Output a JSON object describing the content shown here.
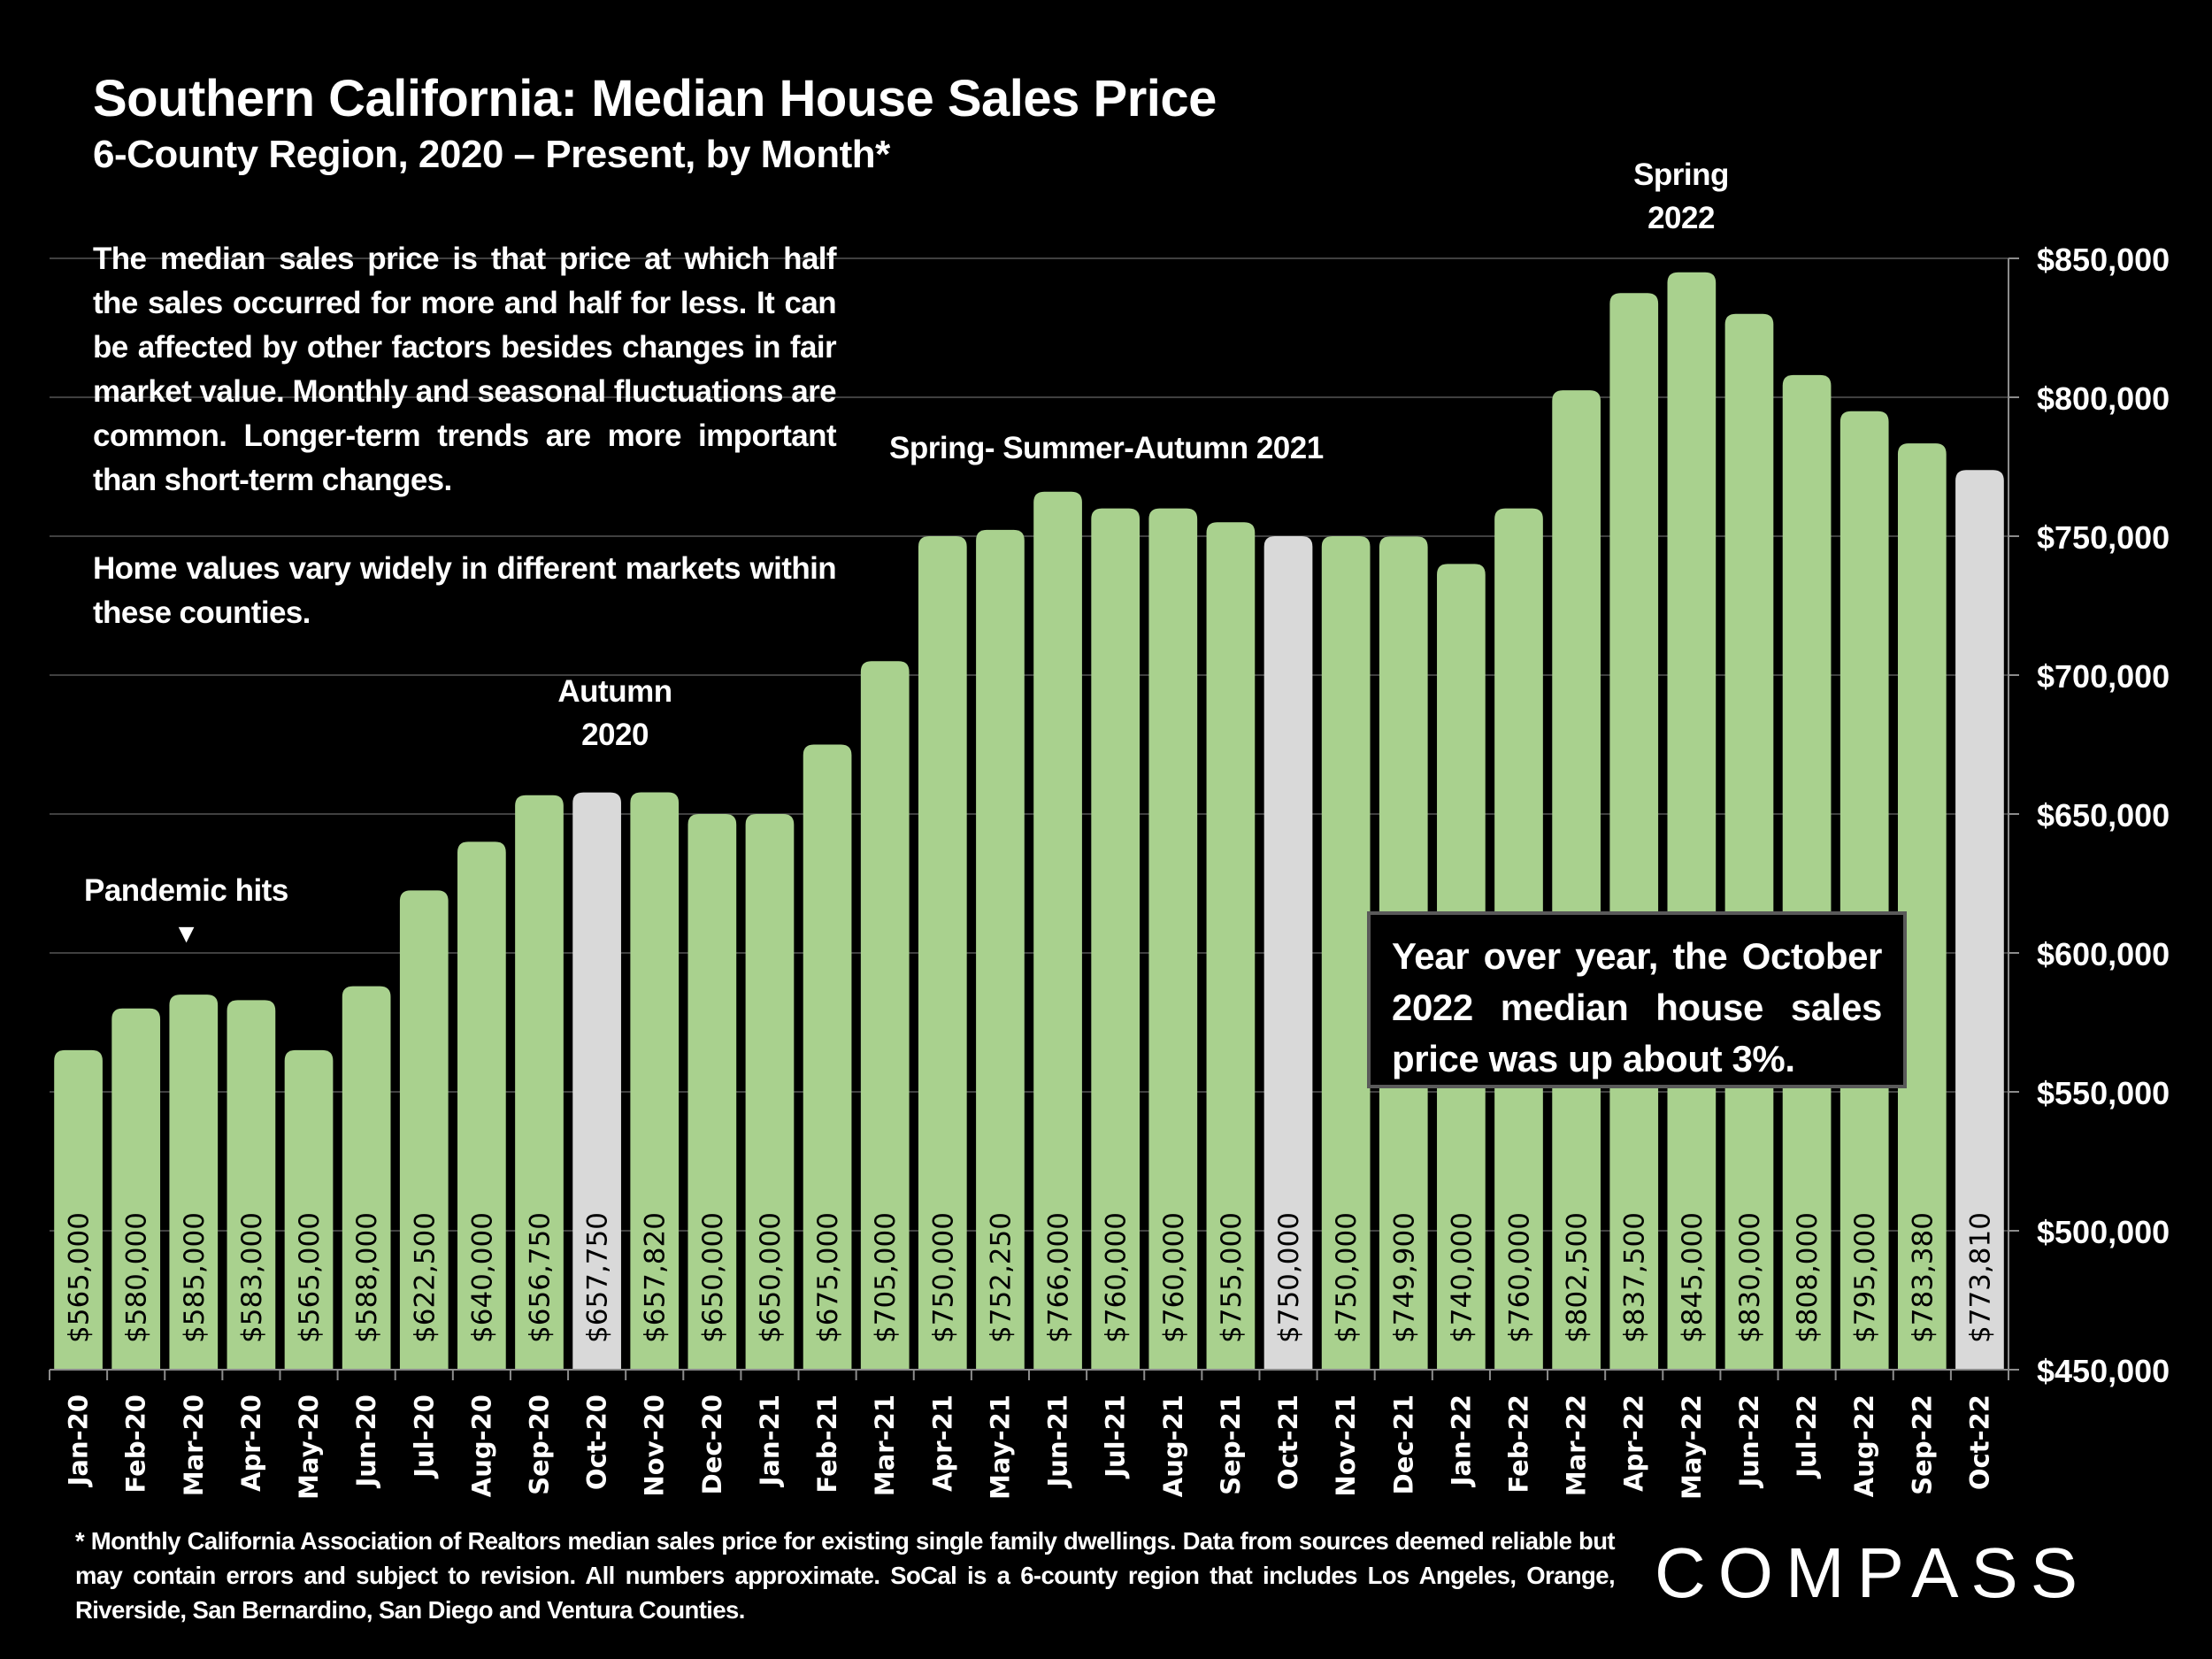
{
  "header": {
    "title": "Southern California: Median House Sales Price",
    "subtitle": "6-County Region, 2020 – Present, by Month*"
  },
  "description": {
    "paragraph1": "The median sales price is that price at which half the sales occurred for more and half for less. It can be affected by other factors besides changes in fair market value. Monthly and seasonal fluctuations are common. Longer-term trends are more important than short-term changes.",
    "paragraph2": "Home values vary widely in different markets within these counties."
  },
  "annotations": {
    "pandemic": "Pandemic hits",
    "pandemic_marker": "▼",
    "autumn_2020_line1": "Autumn",
    "autumn_2020_line2": "2020",
    "ssa_2021": "Spring- Summer-Autumn 2021",
    "spring_2022_line1": "Spring",
    "spring_2022_line2": "2022"
  },
  "callout": {
    "text": "Year over year, the October 2022 median house sales price was up about 3%."
  },
  "footnote": "* Monthly California Association of Realtors median sales price for existing single family dwellings. Data from sources deemed reliable but may contain errors and subject to revision. All numbers approximate. SoCal is a 6-county region that includes Los Angeles, Orange, Riverside, San Bernardino, San Diego and Ventura Counties.",
  "brand": {
    "logo_text": "COMPASS"
  },
  "colors": {
    "background": "#000000",
    "bar_default": "#a9d18e",
    "bar_highlight": "#d9d9d9",
    "gridline": "#404040",
    "axis": "#8c8c8c",
    "text": "#ffffff"
  },
  "chart_data": {
    "type": "bar",
    "title": "Southern California: Median House Sales Price",
    "subtitle": "6-County Region, 2020 – Present, by Month*",
    "xlabel": "",
    "ylabel": "",
    "ylim": [
      450000,
      850000
    ],
    "y_axis_position": "right",
    "grid": true,
    "legend": "none",
    "yticks": [
      450000,
      500000,
      550000,
      600000,
      650000,
      700000,
      750000,
      800000,
      850000
    ],
    "ytick_labels": [
      "$450,000",
      "$500,000",
      "$550,000",
      "$600,000",
      "$650,000",
      "$700,000",
      "$750,000",
      "$800,000",
      "$850,000"
    ],
    "categories": [
      "Jan-20",
      "Feb-20",
      "Mar-20",
      "Apr-20",
      "May-20",
      "Jun-20",
      "Jul-20",
      "Aug-20",
      "Sep-20",
      "Oct-20",
      "Nov-20",
      "Dec-20",
      "Jan-21",
      "Feb-21",
      "Mar-21",
      "Apr-21",
      "May-21",
      "Jun-21",
      "Jul-21",
      "Aug-21",
      "Sep-21",
      "Oct-21",
      "Nov-21",
      "Dec-21",
      "Jan-22",
      "Feb-22",
      "Mar-22",
      "Apr-22",
      "May-22",
      "Jun-22",
      "Jul-22",
      "Aug-22",
      "Sep-22",
      "Oct-22"
    ],
    "values": [
      565000,
      580000,
      585000,
      583000,
      565000,
      588000,
      622500,
      640000,
      656750,
      657750,
      657820,
      650000,
      650000,
      675000,
      705000,
      750000,
      752250,
      766000,
      760000,
      760000,
      755000,
      750000,
      750000,
      749900,
      740000,
      760000,
      802500,
      837500,
      845000,
      830000,
      808000,
      795000,
      783380,
      773810
    ],
    "data_labels": [
      "$565,000",
      "$580,000",
      "$585,000",
      "$583,000",
      "$565,000",
      "$588,000",
      "$622,500",
      "$640,000",
      "$656,750",
      "$657,750",
      "$657,820",
      "$650,000",
      "$650,000",
      "$675,000",
      "$705,000",
      "$750,000",
      "$752,250",
      "$766,000",
      "$760,000",
      "$760,000",
      "$755,000",
      "$750,000",
      "$750,000",
      "$749,900",
      "$740,000",
      "$760,000",
      "$802,500",
      "$837,500",
      "$845,000",
      "$830,000",
      "$808,000",
      "$795,000",
      "$783,380",
      "$773,810"
    ],
    "highlighted_categories": [
      "Oct-20",
      "Oct-21",
      "Oct-22"
    ]
  }
}
